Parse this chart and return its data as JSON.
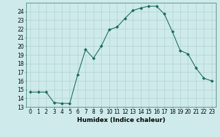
{
  "x": [
    0,
    1,
    2,
    3,
    4,
    5,
    6,
    7,
    8,
    9,
    10,
    11,
    12,
    13,
    14,
    15,
    16,
    17,
    18,
    19,
    20,
    21,
    22,
    23
  ],
  "y": [
    14.7,
    14.7,
    14.7,
    13.5,
    13.4,
    13.4,
    16.7,
    19.6,
    18.6,
    20.0,
    21.9,
    22.2,
    23.2,
    24.1,
    24.4,
    24.6,
    24.6,
    23.7,
    21.7,
    19.5,
    19.1,
    17.5,
    16.3,
    16.0
  ],
  "line_color": "#1a6b5a",
  "marker": "D",
  "marker_size": 2,
  "bg_color": "#ceeaea",
  "grid_color": "#aacccc",
  "xlabel": "Humidex (Indice chaleur)",
  "ylim": [
    13,
    25
  ],
  "xlim": [
    -0.5,
    23.5
  ],
  "yticks": [
    13,
    14,
    15,
    16,
    17,
    18,
    19,
    20,
    21,
    22,
    23,
    24
  ],
  "xticks": [
    0,
    1,
    2,
    3,
    4,
    5,
    6,
    7,
    8,
    9,
    10,
    11,
    12,
    13,
    14,
    15,
    16,
    17,
    18,
    19,
    20,
    21,
    22,
    23
  ],
  "xlabel_fontsize": 6.5,
  "tick_fontsize": 5.5,
  "lw": 0.8
}
